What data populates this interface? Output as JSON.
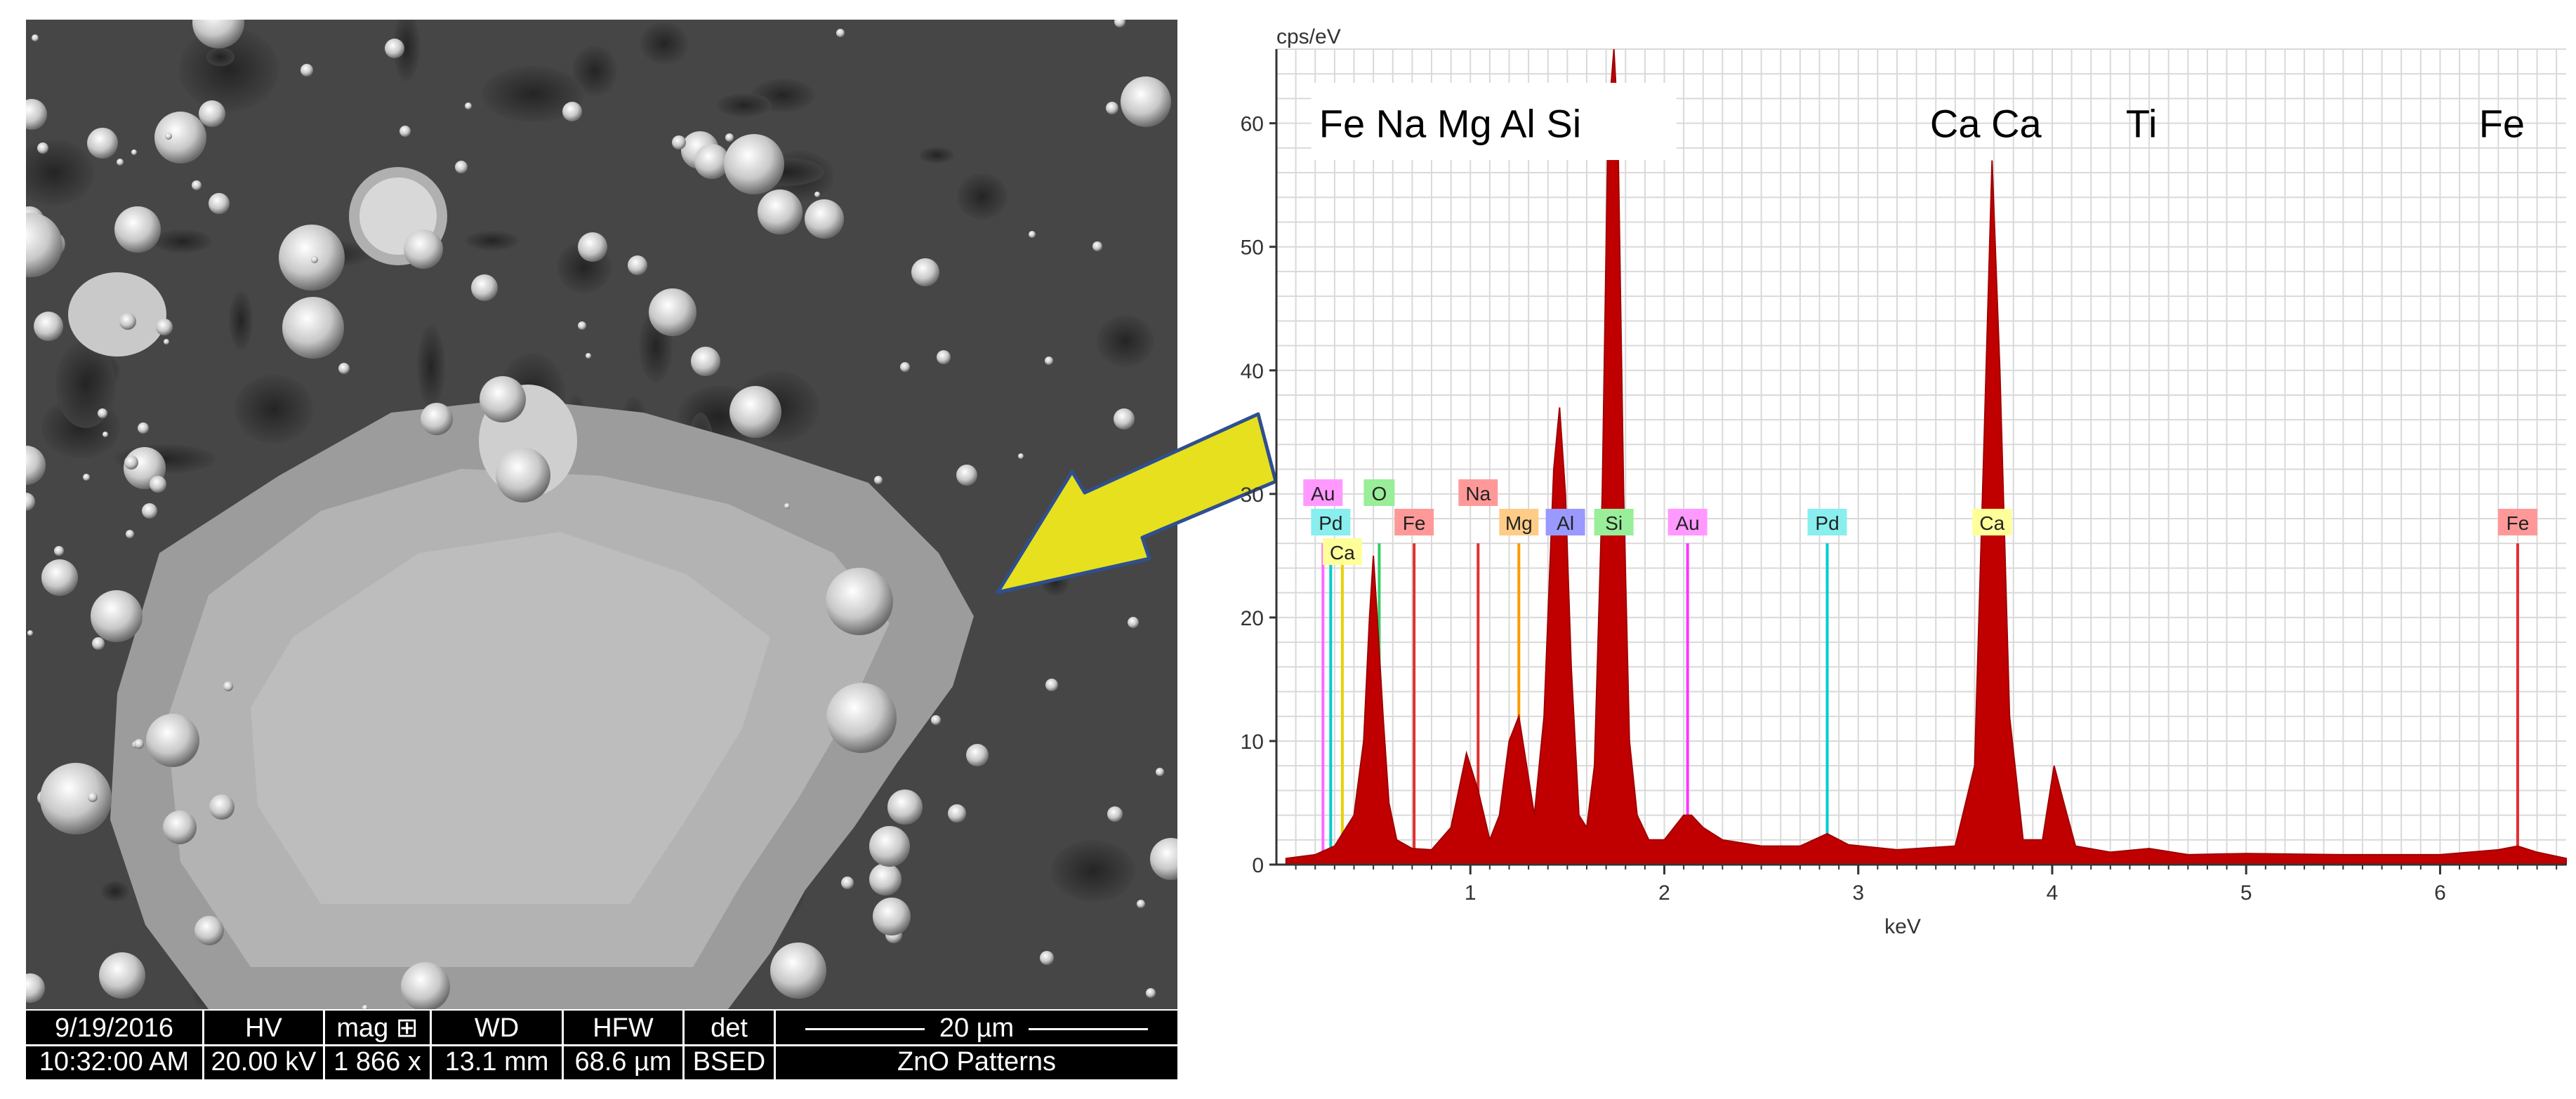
{
  "sem_panel": {
    "info_bar": [
      {
        "line1": "9/19/2016",
        "line2": "10:32:00 AM"
      },
      {
        "line1": "HV",
        "line2": "20.00 kV"
      },
      {
        "line1": "mag ⊞",
        "line2": "1 866 x"
      },
      {
        "line1": "WD",
        "line2": "13.1 mm"
      },
      {
        "line1": "HFW",
        "line2": "68.6 µm"
      },
      {
        "line1": "det",
        "line2": "BSED"
      }
    ],
    "scale_label": "20 µm",
    "sample_name": "ZnO Patterns"
  },
  "colors": {
    "spectrum": "#c00000",
    "arrow_fill": "#e6e01f",
    "arrow_stroke": "#2f4f8f",
    "grid": "#d9d9d9"
  },
  "chart_data": {
    "type": "area",
    "ylabel": "cps/eV",
    "xlabel": "keV",
    "xlim": [
      0.0,
      6.65
    ],
    "ylim": [
      0,
      66
    ],
    "x_ticks": [
      1,
      2,
      3,
      4,
      5,
      6
    ],
    "y_ticks": [
      0,
      10,
      20,
      30,
      40,
      50,
      60
    ],
    "grid": true,
    "series": [
      {
        "x": [
          0.05,
          0.2,
          0.3,
          0.4,
          0.45,
          0.48,
          0.5,
          0.52,
          0.55,
          0.58,
          0.62,
          0.7,
          0.8,
          0.9,
          0.98,
          1.04,
          1.1,
          1.15,
          1.2,
          1.25,
          1.28,
          1.33,
          1.38,
          1.43,
          1.46,
          1.49,
          1.52,
          1.56,
          1.6,
          1.64,
          1.68,
          1.71,
          1.74,
          1.76,
          1.79,
          1.82,
          1.86,
          1.92,
          2.0,
          2.1,
          2.14,
          2.2,
          2.3,
          2.5,
          2.7,
          2.84,
          2.95,
          3.2,
          3.5,
          3.6,
          3.65,
          3.69,
          3.73,
          3.78,
          3.85,
          3.95,
          4.01,
          4.06,
          4.12,
          4.3,
          4.5,
          4.7,
          5.0,
          5.5,
          6.0,
          6.3,
          6.4,
          6.5,
          6.65
        ],
        "y": [
          0.5,
          0.8,
          1.5,
          4,
          10,
          20,
          25,
          20,
          12,
          5,
          2,
          1.3,
          1.2,
          3,
          9,
          6,
          2,
          4,
          10,
          12,
          9,
          4,
          12,
          32,
          37,
          30,
          16,
          4,
          3,
          8,
          30,
          60,
          66,
          60,
          30,
          10,
          4,
          2,
          2,
          4,
          4,
          3,
          2,
          1.5,
          1.5,
          2.5,
          1.6,
          1.2,
          1.5,
          8,
          35,
          57,
          40,
          12,
          2,
          2,
          8,
          5,
          1.5,
          1,
          1.3,
          0.8,
          0.9,
          0.8,
          0.8,
          1.2,
          1.5,
          1.0,
          0.5
        ]
      }
    ],
    "element_markers": [
      {
        "element": "Au",
        "x": 0.24,
        "row": 0,
        "color": "#ff66ff",
        "bg": "#ff99ff",
        "height": 26
      },
      {
        "element": "O",
        "x": 0.53,
        "row": 0,
        "color": "#33cc66",
        "bg": "#99ee99",
        "height": 26
      },
      {
        "element": "Na",
        "x": 1.04,
        "row": 0,
        "color": "#e03030",
        "bg": "#ff9999",
        "height": 26
      },
      {
        "element": "Pd",
        "x": 0.28,
        "row": 1,
        "color": "#00cccc",
        "bg": "#88eeee",
        "height": 26
      },
      {
        "element": "Fe",
        "x": 0.71,
        "row": 1,
        "color": "#e03030",
        "bg": "#ff9999",
        "height": 26
      },
      {
        "element": "Mg",
        "x": 1.25,
        "row": 1,
        "color": "#ff9900",
        "bg": "#ffcc88",
        "height": 26
      },
      {
        "element": "Al",
        "x": 1.49,
        "row": 1,
        "color": "#3333cc",
        "bg": "#9999ff",
        "height": 26
      },
      {
        "element": "Si",
        "x": 1.74,
        "row": 1,
        "color": "#33cc33",
        "bg": "#99ee99",
        "height": 26
      },
      {
        "element": "Au",
        "x": 2.12,
        "row": 1,
        "color": "#ff33ff",
        "bg": "#ff99ff",
        "height": 26
      },
      {
        "element": "Pd",
        "x": 2.84,
        "row": 1,
        "color": "#00cccc",
        "bg": "#88eeee",
        "height": 26
      },
      {
        "element": "Ca",
        "x": 3.69,
        "row": 1,
        "color": "#e6d200",
        "bg": "#ffff99",
        "height": 26
      },
      {
        "element": "Fe",
        "x": 6.4,
        "row": 1,
        "color": "#e03030",
        "bg": "#ff9999",
        "height": 26
      },
      {
        "element": "Ca",
        "x": 0.34,
        "row": 2,
        "color": "#e6d200",
        "bg": "#ffff99",
        "height": 26
      }
    ],
    "annotations": [
      {
        "text": "Fe Na Mg Al Si",
        "x": 0.22,
        "y": 60
      },
      {
        "text": "Ca Ca",
        "x": 3.37,
        "y": 60
      },
      {
        "text": "Ti",
        "x": 4.38,
        "y": 60
      },
      {
        "text": "Fe",
        "x": 6.2,
        "y": 60
      }
    ]
  }
}
